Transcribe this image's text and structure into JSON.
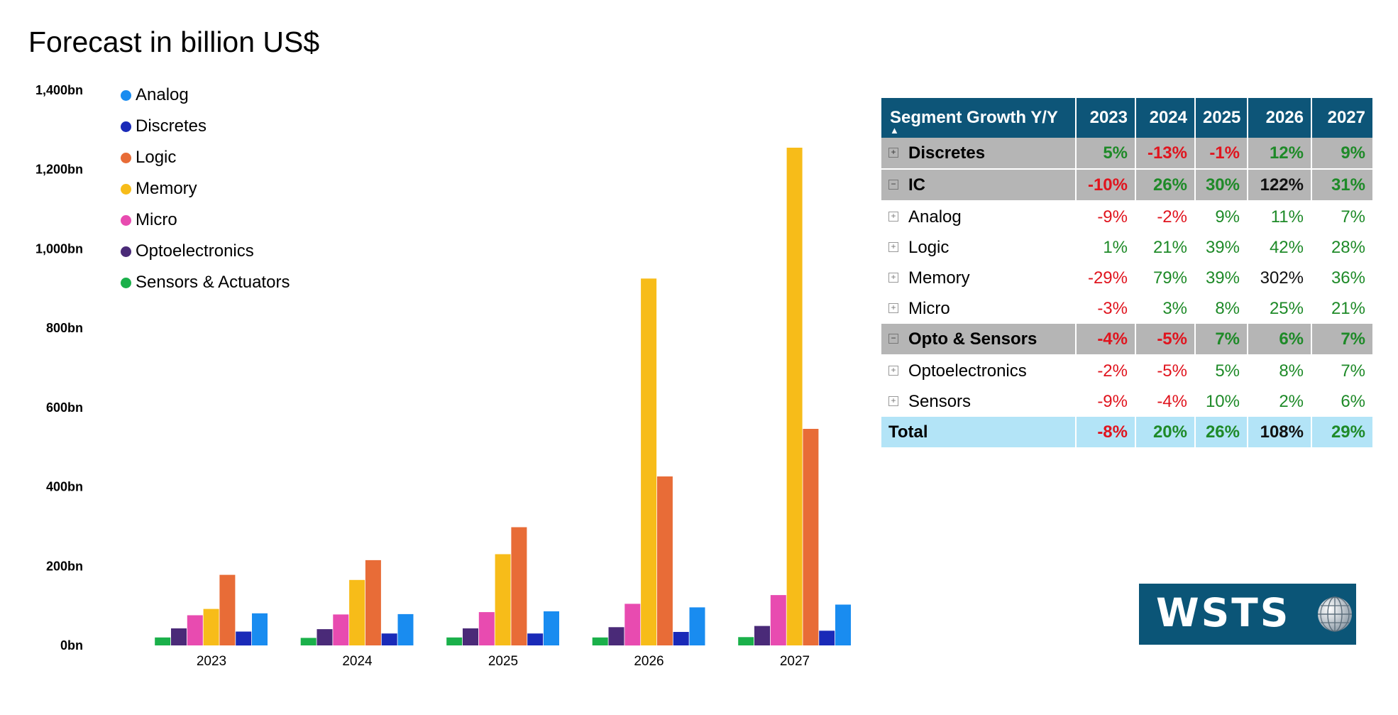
{
  "chart_data": {
    "type": "bar",
    "title": "Forecast in billion US$",
    "categories": [
      "2023",
      "2024",
      "2025",
      "2026",
      "2027"
    ],
    "ylim": [
      0,
      1400
    ],
    "yticks": [
      "0bn",
      "200bn",
      "400bn",
      "600bn",
      "800bn",
      "1,000bn",
      "1,200bn",
      "1,400bn"
    ],
    "grid": false,
    "legend_position": "top-left",
    "legend_order": [
      "Analog",
      "Discretes",
      "Logic",
      "Memory",
      "Micro",
      "Optoelectronics",
      "Sensors & Actuators"
    ],
    "series": [
      {
        "name": "Sensors & Actuators",
        "color": "#1ab04a",
        "values": [
          20,
          19,
          20,
          20,
          21
        ]
      },
      {
        "name": "Optoelectronics",
        "color": "#4a2a78",
        "values": [
          43,
          41,
          43,
          46,
          49
        ]
      },
      {
        "name": "Micro",
        "color": "#e84bb0",
        "values": [
          76,
          78,
          84,
          105,
          127
        ]
      },
      {
        "name": "Memory",
        "color": "#f7bc19",
        "values": [
          92,
          165,
          230,
          925,
          1255
        ]
      },
      {
        "name": "Logic",
        "color": "#e86c37",
        "values": [
          178,
          215,
          298,
          426,
          546
        ]
      },
      {
        "name": "Discretes",
        "color": "#1a2ab8",
        "values": [
          35,
          30,
          30,
          34,
          37
        ]
      },
      {
        "name": "Analog",
        "color": "#198cf0",
        "values": [
          81,
          79,
          86,
          96,
          103
        ]
      }
    ]
  },
  "table": {
    "header": {
      "segment": "Segment Growth Y/Y",
      "years": [
        "2023",
        "2024",
        "2025",
        "2026",
        "2027"
      ],
      "sort_icon": "sort-up-icon"
    },
    "rows": [
      {
        "type": "group",
        "state": "collapsed",
        "label": "Discretes",
        "values": [
          "5%",
          "-13%",
          "-1%",
          "12%",
          "9%"
        ]
      },
      {
        "type": "group",
        "state": "expanded",
        "label": "IC",
        "values": [
          "-10%",
          "26%",
          "30%",
          "122%",
          "31%"
        ]
      },
      {
        "type": "sub",
        "state": "collapsed",
        "label": "Analog",
        "values": [
          "-9%",
          "-2%",
          "9%",
          "11%",
          "7%"
        ]
      },
      {
        "type": "sub",
        "state": "collapsed",
        "label": "Logic",
        "values": [
          "1%",
          "21%",
          "39%",
          "42%",
          "28%"
        ]
      },
      {
        "type": "sub",
        "state": "collapsed",
        "label": "Memory",
        "values": [
          "-29%",
          "79%",
          "39%",
          "302%",
          "36%"
        ]
      },
      {
        "type": "sub",
        "state": "collapsed",
        "label": "Micro",
        "values": [
          "-3%",
          "3%",
          "8%",
          "25%",
          "21%"
        ]
      },
      {
        "type": "group",
        "state": "expanded",
        "label": "Opto & Sensors",
        "values": [
          "-4%",
          "-5%",
          "7%",
          "6%",
          "7%"
        ]
      },
      {
        "type": "sub",
        "state": "collapsed",
        "label": "Optoelectronics",
        "values": [
          "-2%",
          "-5%",
          "5%",
          "8%",
          "7%"
        ]
      },
      {
        "type": "sub",
        "state": "collapsed",
        "label": "Sensors",
        "values": [
          "-9%",
          "-4%",
          "10%",
          "2%",
          "6%"
        ]
      },
      {
        "type": "total",
        "label": "Total",
        "values": [
          "-8%",
          "20%",
          "26%",
          "108%",
          "29%"
        ]
      }
    ],
    "colors": {
      "negative": "#e0141e",
      "positive": "#1e8a28",
      "neutral": "#111111",
      "header_bg": "#0d5578",
      "group_bg": "#b5b5b5",
      "total_bg": "#b3e4f7"
    }
  },
  "logo": {
    "text": "WSTS",
    "icon": "globe-icon"
  }
}
